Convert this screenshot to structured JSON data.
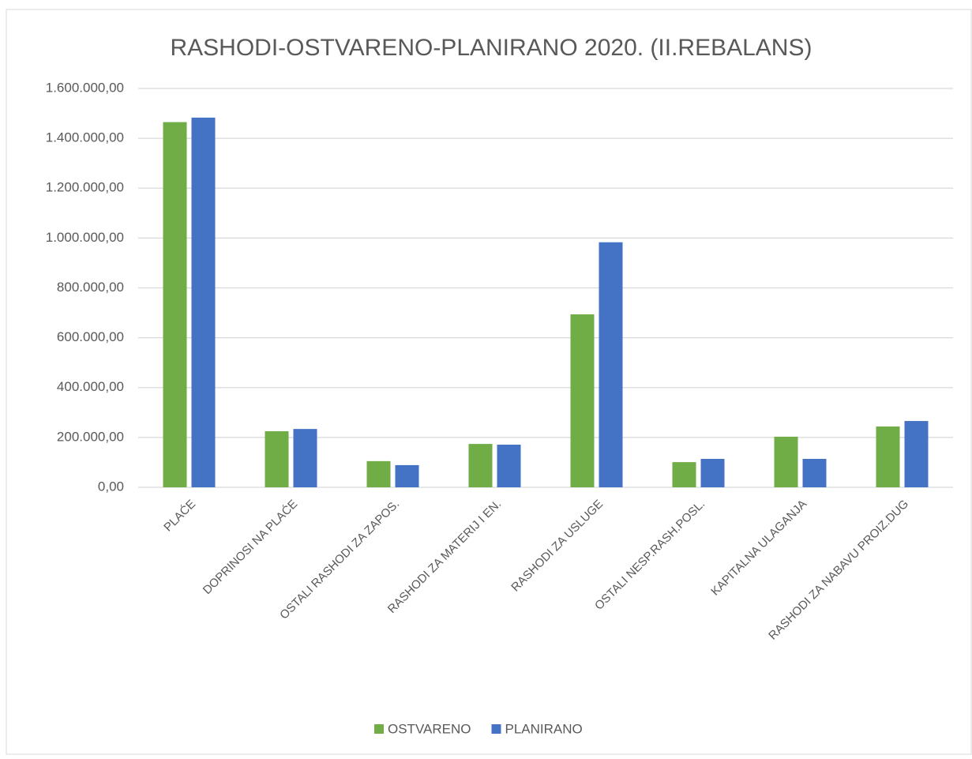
{
  "chart_data": {
    "type": "bar",
    "title": "RASHODI-OSTVARENO-PLANIRANO 2020. (II.REBALANS)",
    "categories": [
      "PLAĆE",
      "DOPRINOSI NA PLAĆE",
      "OSTALI RASHODI ZA ZAPOS.",
      "RASHODI ZA MATERIJ I EN.",
      "RASHODI ZA USLUGE",
      "OSTALI NESP.RASH.POSL.",
      "KAPITALNA ULAGANJA",
      "RASHODI ZA NABAVU PROIZ.DUG"
    ],
    "series": [
      {
        "name": "OSTVARENO",
        "color": "#70ad47",
        "values": [
          1465000,
          225000,
          105000,
          174000,
          694000,
          101000,
          203000,
          244000
        ]
      },
      {
        "name": "PLANIRANO",
        "color": "#4472c4",
        "values": [
          1483000,
          234000,
          89000,
          171000,
          983000,
          114000,
          114000,
          266000
        ]
      }
    ],
    "ylim": [
      0,
      1600000
    ],
    "yticks": [
      {
        "value": 0,
        "label": "0,00"
      },
      {
        "value": 200000,
        "label": "200.000,00"
      },
      {
        "value": 400000,
        "label": "400.000,00"
      },
      {
        "value": 600000,
        "label": "600.000,00"
      },
      {
        "value": 800000,
        "label": "800.000,00"
      },
      {
        "value": 1000000,
        "label": "1.000.000,00"
      },
      {
        "value": 1200000,
        "label": "1.200.000,00"
      },
      {
        "value": 1400000,
        "label": "1.400.000,00"
      },
      {
        "value": 1600000,
        "label": "1.600.000,00"
      }
    ],
    "grid": true,
    "legend": "bottom"
  }
}
